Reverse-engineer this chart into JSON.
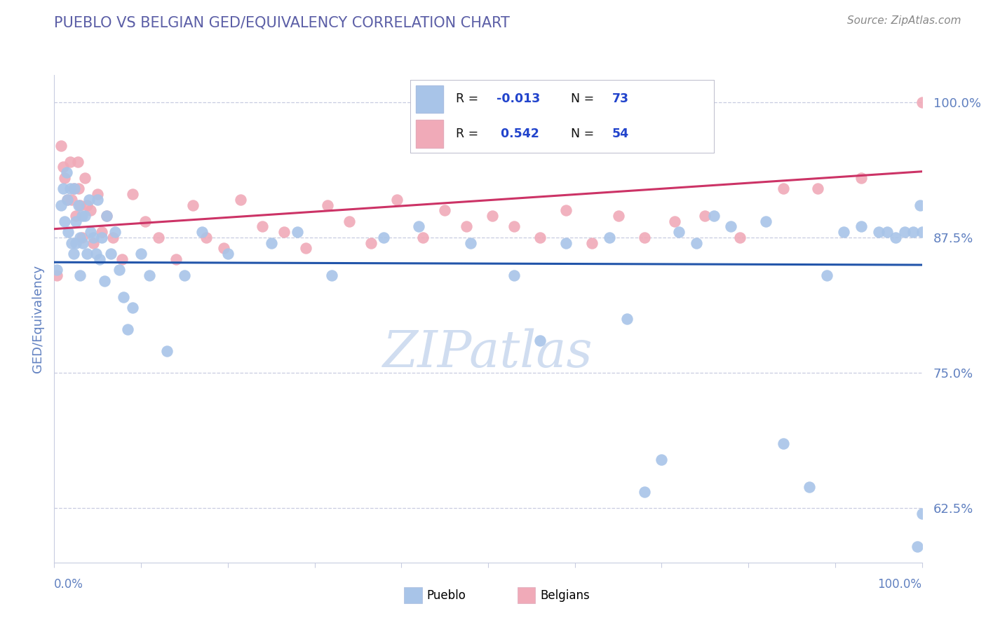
{
  "title": "PUEBLO VS BELGIAN GED/EQUIVALENCY CORRELATION CHART",
  "source": "Source: ZipAtlas.com",
  "ylabel": "GED/Equivalency",
  "pueblo_R": -0.013,
  "pueblo_N": 73,
  "belgian_R": 0.542,
  "belgian_N": 54,
  "xlim": [
    0.0,
    1.0
  ],
  "ylim": [
    0.575,
    1.025
  ],
  "yticks": [
    0.625,
    0.75,
    0.875,
    1.0
  ],
  "ytick_labels": [
    "62.5%",
    "75.0%",
    "87.5%",
    "100.0%"
  ],
  "title_color": "#5b5ea6",
  "source_color": "#888888",
  "axis_color": "#6080c0",
  "grid_color": "#c8cce0",
  "pueblo_color": "#a8c4e8",
  "pueblo_edge_color": "#a8c4e8",
  "pueblo_line_color": "#2255aa",
  "belgian_color": "#f0aab8",
  "belgian_edge_color": "#f0aab8",
  "belgian_line_color": "#cc3366",
  "legend_text_color": "#111111",
  "legend_R_color": "#2244cc",
  "watermark": "ZIPatlas",
  "watermark_color": "#d0ddf0",
  "pueblo_x": [
    0.003,
    0.008,
    0.01,
    0.012,
    0.014,
    0.015,
    0.016,
    0.018,
    0.02,
    0.022,
    0.023,
    0.025,
    0.025,
    0.028,
    0.03,
    0.03,
    0.032,
    0.033,
    0.035,
    0.038,
    0.04,
    0.042,
    0.045,
    0.048,
    0.05,
    0.052,
    0.055,
    0.058,
    0.06,
    0.065,
    0.07,
    0.075,
    0.08,
    0.085,
    0.09,
    0.1,
    0.11,
    0.13,
    0.15,
    0.17,
    0.2,
    0.25,
    0.28,
    0.32,
    0.38,
    0.42,
    0.48,
    0.53,
    0.56,
    0.59,
    0.64,
    0.66,
    0.68,
    0.7,
    0.72,
    0.74,
    0.76,
    0.78,
    0.82,
    0.84,
    0.87,
    0.89,
    0.91,
    0.93,
    0.95,
    0.96,
    0.97,
    0.98,
    0.99,
    0.995,
    0.998,
    1.0,
    1.0
  ],
  "pueblo_y": [
    0.845,
    0.905,
    0.92,
    0.89,
    0.935,
    0.91,
    0.88,
    0.92,
    0.87,
    0.86,
    0.92,
    0.89,
    0.87,
    0.905,
    0.875,
    0.84,
    0.895,
    0.87,
    0.895,
    0.86,
    0.91,
    0.88,
    0.875,
    0.86,
    0.91,
    0.855,
    0.875,
    0.835,
    0.895,
    0.86,
    0.88,
    0.845,
    0.82,
    0.79,
    0.81,
    0.86,
    0.84,
    0.77,
    0.84,
    0.88,
    0.86,
    0.87,
    0.88,
    0.84,
    0.875,
    0.885,
    0.87,
    0.84,
    0.78,
    0.87,
    0.875,
    0.8,
    0.64,
    0.67,
    0.88,
    0.87,
    0.895,
    0.885,
    0.89,
    0.685,
    0.645,
    0.84,
    0.88,
    0.885,
    0.88,
    0.88,
    0.875,
    0.88,
    0.88,
    0.59,
    0.905,
    0.88,
    0.62
  ],
  "belgian_x": [
    0.003,
    0.008,
    0.01,
    0.012,
    0.015,
    0.018,
    0.02,
    0.022,
    0.025,
    0.027,
    0.028,
    0.03,
    0.032,
    0.035,
    0.038,
    0.042,
    0.045,
    0.05,
    0.055,
    0.06,
    0.068,
    0.078,
    0.09,
    0.105,
    0.12,
    0.14,
    0.16,
    0.175,
    0.195,
    0.215,
    0.24,
    0.265,
    0.29,
    0.315,
    0.34,
    0.365,
    0.395,
    0.425,
    0.45,
    0.475,
    0.505,
    0.53,
    0.56,
    0.59,
    0.62,
    0.65,
    0.68,
    0.715,
    0.75,
    0.79,
    0.84,
    0.88,
    0.93,
    1.0
  ],
  "belgian_y": [
    0.84,
    0.96,
    0.94,
    0.93,
    0.91,
    0.945,
    0.91,
    0.92,
    0.895,
    0.945,
    0.92,
    0.905,
    0.875,
    0.93,
    0.905,
    0.9,
    0.87,
    0.915,
    0.88,
    0.895,
    0.875,
    0.855,
    0.915,
    0.89,
    0.875,
    0.855,
    0.905,
    0.875,
    0.865,
    0.91,
    0.885,
    0.88,
    0.865,
    0.905,
    0.89,
    0.87,
    0.91,
    0.875,
    0.9,
    0.885,
    0.895,
    0.885,
    0.875,
    0.9,
    0.87,
    0.895,
    0.875,
    0.89,
    0.895,
    0.875,
    0.92,
    0.92,
    0.93,
    1.0
  ]
}
